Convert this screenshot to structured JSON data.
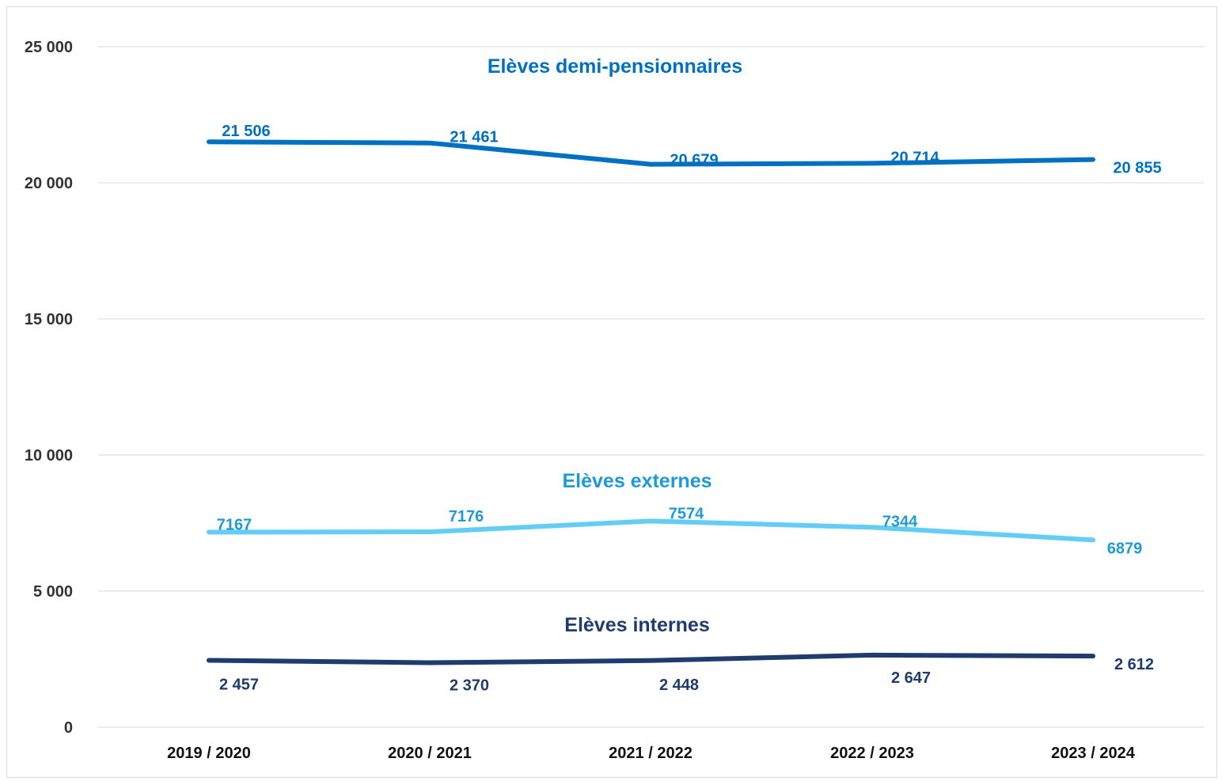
{
  "chart_data": {
    "type": "line",
    "categories": [
      "2019 / 2020",
      "2020 / 2021",
      "2021 / 2022",
      "2022 / 2023",
      "2023 / 2024"
    ],
    "ylim": [
      0,
      25000
    ],
    "yticks": [
      0,
      5000,
      10000,
      15000,
      20000,
      25000
    ],
    "ytick_labels": [
      "0",
      "5 000",
      "10 000",
      "15 000",
      "20 000",
      "25 000"
    ],
    "grid": true,
    "legend": "labels placed on the chart above each line",
    "series": [
      {
        "name": "Elèves demi-pensionnaires",
        "color": "#0070c0",
        "values": [
          21506,
          21461,
          20679,
          20714,
          20855
        ],
        "labels": [
          "21 506",
          "21 461",
          "20 679",
          "20 714",
          "20 855"
        ]
      },
      {
        "name": "Elèves externes",
        "color": "#63cdf5",
        "label_color": "#1e9ad6",
        "values": [
          7167,
          7176,
          7574,
          7344,
          6879
        ],
        "labels": [
          "7167",
          "7176",
          "7574",
          "7344",
          "6879"
        ]
      },
      {
        "name": "Elèves internes",
        "color": "#1f3c6e",
        "values": [
          2457,
          2370,
          2448,
          2647,
          2612
        ],
        "labels": [
          "2 457",
          "2 370",
          "2 448",
          "2 647",
          "2 612"
        ]
      }
    ]
  }
}
